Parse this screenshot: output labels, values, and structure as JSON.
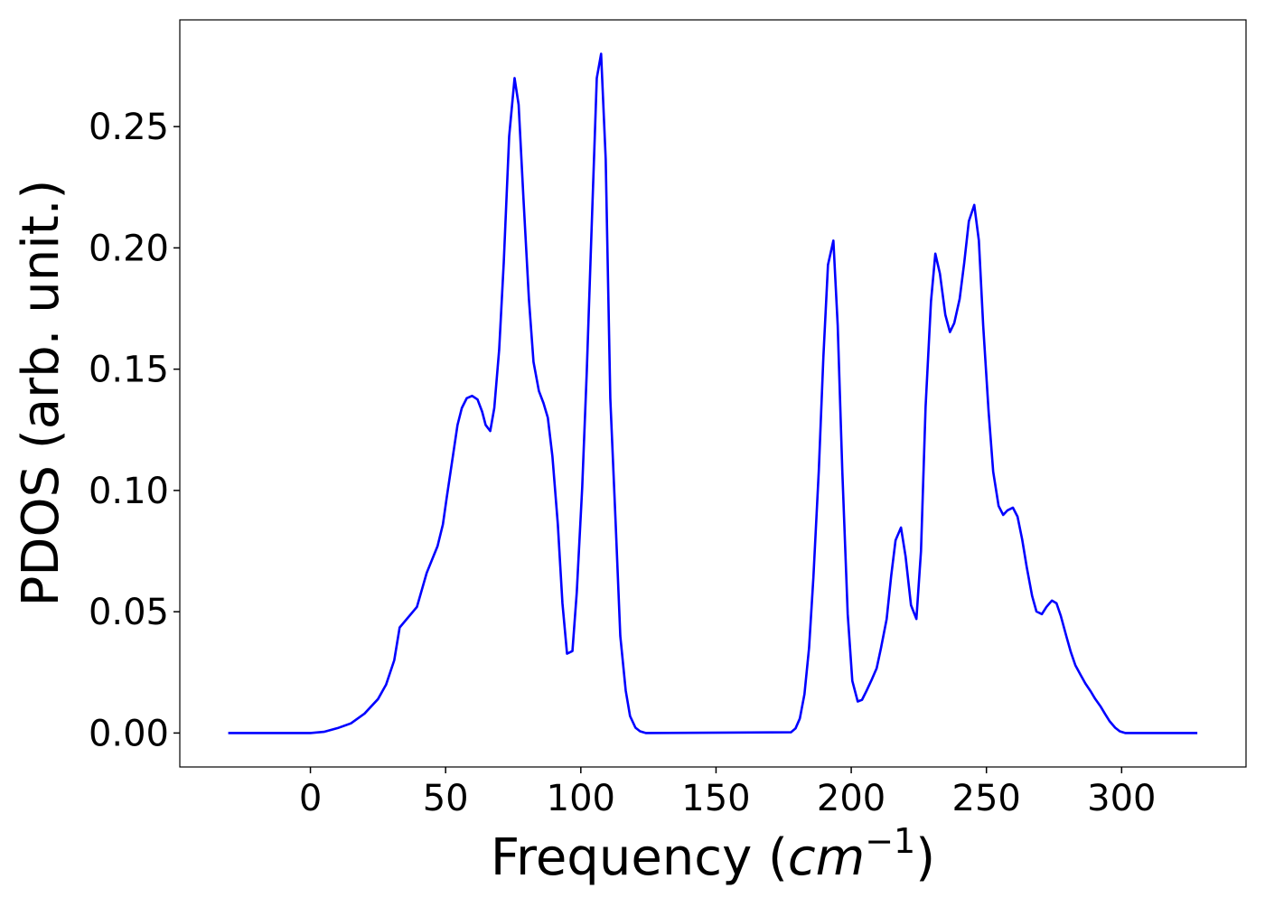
{
  "chart_data": {
    "type": "line",
    "xlabel": [
      "Frequency (",
      "cm",
      "−1",
      ")"
    ],
    "ylabel": "PDOS (arb. unit.)",
    "xlim": [
      -48.3,
      346
    ],
    "ylim": [
      -0.014,
      0.294
    ],
    "xticks": [
      0,
      50,
      100,
      150,
      200,
      250,
      300
    ],
    "yticks": [
      {
        "value": 0,
        "label": "0.00"
      },
      {
        "value": 0.05,
        "label": "0.05"
      },
      {
        "value": 0.1,
        "label": "0.10"
      },
      {
        "value": 0.15,
        "label": "0.15"
      },
      {
        "value": 0.2,
        "label": "0.20"
      },
      {
        "value": 0.25,
        "label": "0.25"
      }
    ],
    "grid": false,
    "series": [
      {
        "color": "#0000ff",
        "x": [
          -30.4,
          0,
          5,
          10,
          15,
          20,
          25,
          28,
          31,
          33,
          39.4,
          43,
          47,
          49,
          50.4,
          52.4,
          54.4,
          56,
          57.8,
          59.8,
          61.8,
          63.5,
          64.8,
          66.5,
          68,
          69.8,
          71.5,
          73.5,
          75.5,
          77,
          78.8,
          80.8,
          82.5,
          84.5,
          86.2,
          87.8,
          89.5,
          91.5,
          93.2,
          94.9,
          96.9,
          98.5,
          100.5,
          102.2,
          103.9,
          105.9,
          107.5,
          109.2,
          110.9,
          112.9,
          114.6,
          116.6,
          118.2,
          120.2,
          121.9,
          124,
          177.7,
          179.4,
          181,
          182.7,
          184.4,
          186,
          188,
          189.7,
          191.4,
          193.4,
          195,
          196.7,
          198.7,
          200.4,
          202.4,
          204,
          205.7,
          207.7,
          209.4,
          211,
          213.1,
          214.8,
          216.4,
          218.4,
          220.1,
          222.1,
          224.1,
          225.8,
          227.5,
          229.5,
          231.1,
          232.8,
          234.8,
          236.5,
          238.1,
          240.1,
          241.8,
          243.5,
          245.5,
          247.2,
          248.8,
          250.8,
          252.5,
          254.5,
          256.2,
          257.8,
          259.8,
          261.5,
          263.2,
          264.9,
          266.9,
          268.5,
          270.5,
          272.2,
          274.2,
          275.9,
          277.5,
          279.6,
          281.2,
          282.9,
          284.9,
          286.6,
          288.6,
          290.2,
          292.3,
          293.9,
          295.6,
          297.6,
          299.3,
          301.3,
          328
        ],
        "values": [
          0,
          0,
          0.0005,
          0.002,
          0.004,
          0.008,
          0.014,
          0.02,
          0.03,
          0.0435,
          0.052,
          0.066,
          0.077,
          0.086,
          0.097,
          0.112,
          0.127,
          0.134,
          0.138,
          0.139,
          0.1375,
          0.1325,
          0.127,
          0.1245,
          0.134,
          0.158,
          0.194,
          0.246,
          0.27,
          0.259,
          0.22,
          0.179,
          0.153,
          0.141,
          0.136,
          0.13,
          0.114,
          0.086,
          0.0535,
          0.0327,
          0.0338,
          0.058,
          0.101,
          0.149,
          0.205,
          0.27,
          0.28,
          0.2366,
          0.138,
          0.086,
          0.04,
          0.0175,
          0.007,
          0.0022,
          0.0007,
          0,
          0.0003,
          0.0019,
          0.006,
          0.016,
          0.035,
          0.064,
          0.108,
          0.155,
          0.193,
          0.203,
          0.168,
          0.108,
          0.049,
          0.0215,
          0.013,
          0.0137,
          0.0175,
          0.0223,
          0.0267,
          0.035,
          0.047,
          0.065,
          0.0795,
          0.0847,
          0.0728,
          0.0527,
          0.047,
          0.075,
          0.1345,
          0.178,
          0.1976,
          0.1894,
          0.1724,
          0.1653,
          0.169,
          0.179,
          0.194,
          0.211,
          0.2177,
          0.203,
          0.168,
          0.1326,
          0.1077,
          0.0936,
          0.0899,
          0.0918,
          0.0929,
          0.0892,
          0.0799,
          0.0684,
          0.0565,
          0.0501,
          0.049,
          0.052,
          0.0546,
          0.0535,
          0.0483,
          0.0397,
          0.0334,
          0.0279,
          0.0238,
          0.0204,
          0.0171,
          0.0141,
          0.0108,
          0.0078,
          0.0048,
          0.0022,
          0.0007,
          0,
          0
        ]
      }
    ]
  }
}
